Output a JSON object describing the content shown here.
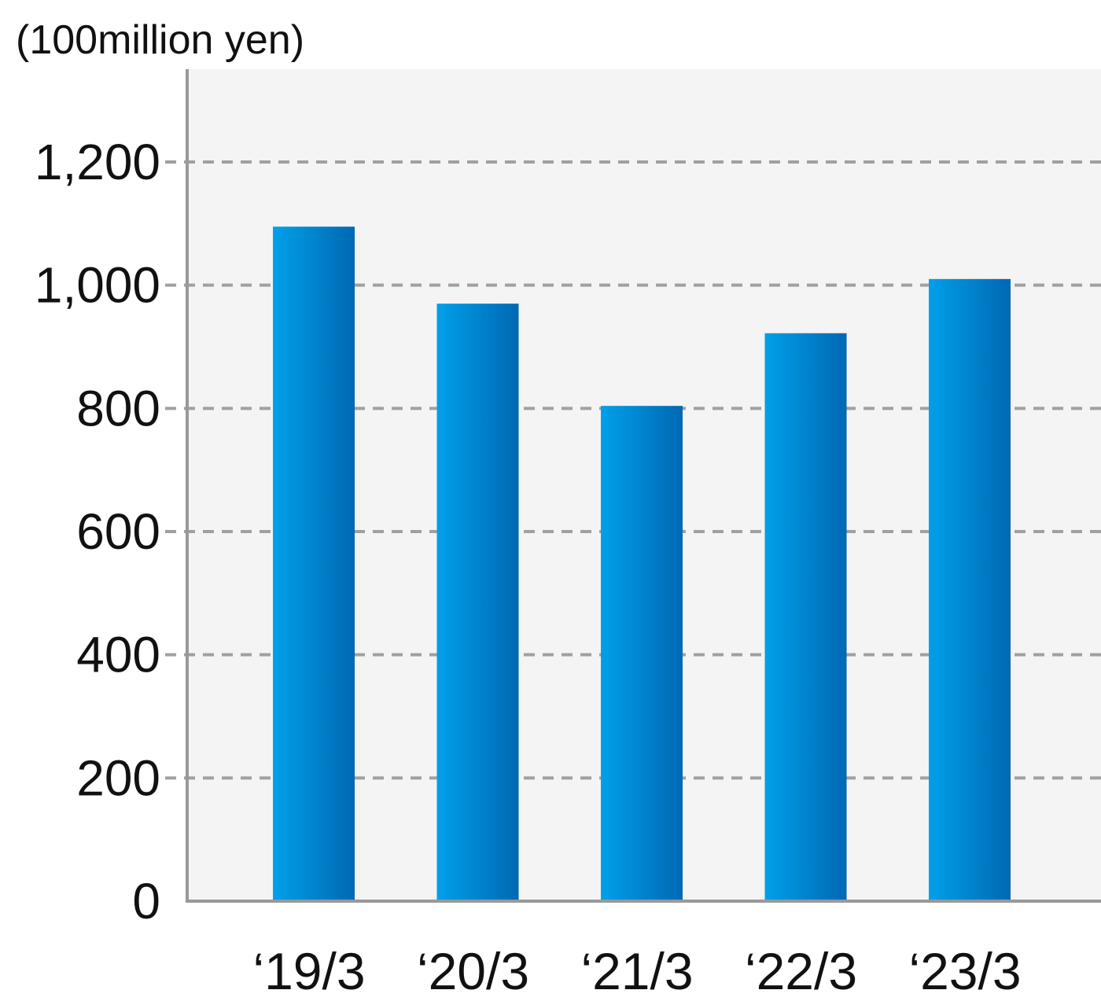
{
  "chart_data": {
    "type": "bar",
    "unit_label": "(100million yen)",
    "categories": [
      "‘19/3",
      "‘20/3",
      "‘21/3",
      "‘22/3",
      "‘23/3"
    ],
    "values": [
      1095,
      970,
      804,
      922,
      1010
    ],
    "y_ticks": [
      "0",
      "200",
      "400",
      "600",
      "800",
      "1,000",
      "1,200"
    ],
    "ylim": [
      0,
      1200
    ],
    "grid": true,
    "colors": {
      "bar_light": "#00a0e9",
      "bar_dark": "#0068b3",
      "plot_background": "#f4f4f4",
      "grid": "#a0a0a0",
      "axis": "#999999"
    }
  }
}
